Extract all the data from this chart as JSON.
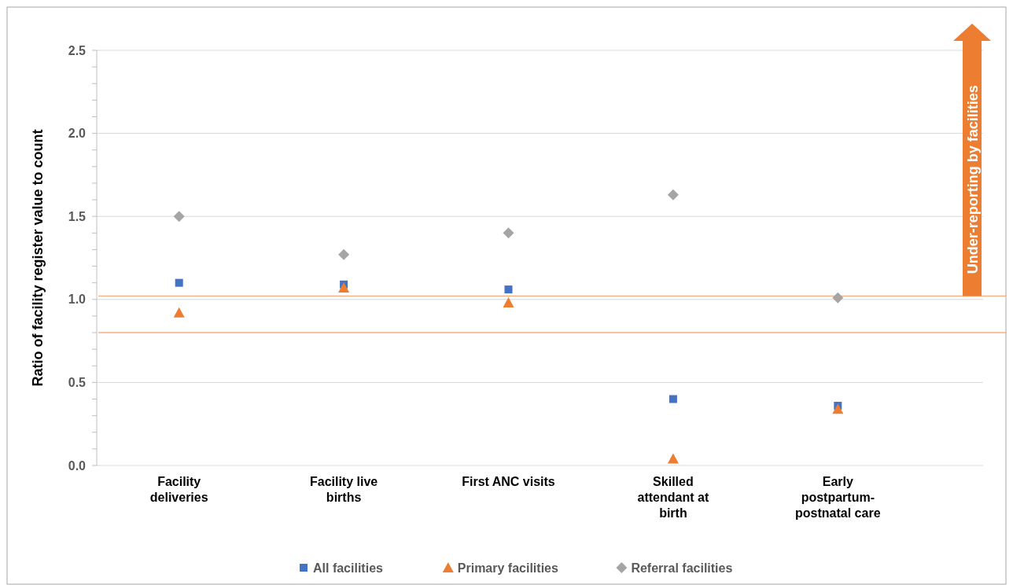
{
  "chart_data": {
    "type": "scatter",
    "ylabel": "Ratio of facility register value to count",
    "categories": [
      "Facility deliveries",
      "Facility live births",
      "First ANC visits",
      "Skilled attendant at birth",
      "Early postpartum-postnatal care"
    ],
    "series": [
      {
        "name": "All facilities",
        "color": "#4472c4",
        "marker": "square",
        "values": [
          1.1,
          1.09,
          1.06,
          0.4,
          0.36
        ]
      },
      {
        "name": "Primary facilities",
        "color": "#ed7d31",
        "marker": "triangle",
        "values": [
          0.92,
          1.07,
          0.98,
          0.04,
          0.34
        ]
      },
      {
        "name": "Referral facilities",
        "color": "#a5a5a5",
        "marker": "diamond",
        "values": [
          1.5,
          1.27,
          1.4,
          1.63,
          1.01
        ]
      }
    ],
    "ylim": [
      0,
      2.5
    ],
    "yticks": [
      {
        "value": 0,
        "label": "0.0"
      },
      {
        "value": 0.1,
        "label": null
      },
      {
        "value": 0.2,
        "label": null
      },
      {
        "value": 0.3,
        "label": null
      },
      {
        "value": 0.4,
        "label": null
      },
      {
        "value": 0.5,
        "label": "0.5"
      },
      {
        "value": 0.6,
        "label": null
      },
      {
        "value": 0.7,
        "label": null
      },
      {
        "value": 0.8,
        "label": null
      },
      {
        "value": 0.9,
        "label": null
      },
      {
        "value": 1,
        "label": "1.0"
      },
      {
        "value": 1.1,
        "label": null
      },
      {
        "value": 1.2,
        "label": null
      },
      {
        "value": 1.3,
        "label": null
      },
      {
        "value": 1.4,
        "label": null
      },
      {
        "value": 1.5,
        "label": "1.5"
      },
      {
        "value": 1.6,
        "label": null
      },
      {
        "value": 1.7,
        "label": null
      },
      {
        "value": 1.8,
        "label": null
      },
      {
        "value": 1.9,
        "label": null
      },
      {
        "value": 2,
        "label": "2.0"
      },
      {
        "value": 2.1,
        "label": null
      },
      {
        "value": 2.2,
        "label": null
      },
      {
        "value": 2.3,
        "label": null
      },
      {
        "value": 2.4,
        "label": null
      },
      {
        "value": 2.5,
        "label": "2.5"
      }
    ],
    "grid": "y",
    "legend": "bottom",
    "ref_lines": [
      {
        "axis": "y",
        "value": 1.02,
        "label": null,
        "color": "#f4b183"
      },
      {
        "axis": "y",
        "value": 0.8,
        "label": null,
        "color": "#f4b183"
      }
    ],
    "annotations": [
      "Under-reporting by facilities"
    ]
  }
}
